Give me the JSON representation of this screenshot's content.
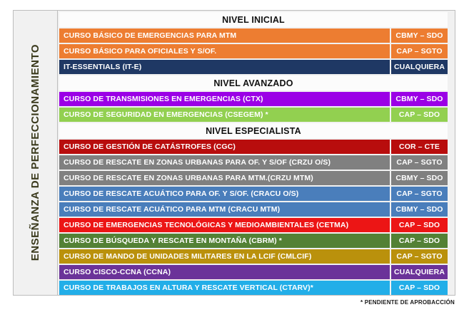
{
  "sidebar": {
    "label": "ENSEÑANZA DE PERFECCIONAMIENTO"
  },
  "footnote": "* PENDIENTE DE APROBACCIÓN",
  "colors": {
    "orange": "#ED7D31",
    "navy": "#1F3864",
    "violet": "#9B00E6",
    "light_green": "#92D050",
    "dark_red": "#B80D0D",
    "gray": "#808080",
    "steel_blue": "#4A7EBB",
    "bright_red": "#EC1515",
    "dark_green": "#538135",
    "gold": "#BA910C",
    "purple": "#6B3399",
    "sky_blue": "#22AEE8",
    "table_bg": "#F1F1F1",
    "header_bg": "#FCFCFC",
    "border": "#BDBDBD"
  },
  "rows": [
    {
      "type": "header",
      "label": "NIVEL INICIAL"
    },
    {
      "type": "course",
      "name": "CURSO BÁSICO DE EMERGENCIAS PARA MTM",
      "grade": "CBMY – SDO",
      "color": "#ED7D31"
    },
    {
      "type": "course",
      "name": "CURSO BÁSICO PARA OFICIALES Y S/OF.",
      "grade": "CAP – SGTO",
      "color": "#ED7D31"
    },
    {
      "type": "course",
      "name": "IT-ESSENTIALS (IT-E)",
      "grade": "CUALQUIERA",
      "color": "#1F3864"
    },
    {
      "type": "header",
      "label": "NIVEL AVANZADO"
    },
    {
      "type": "course",
      "name": "CURSO DE TRANSMISIONES EN EMERGENCIAS (CTX)",
      "grade": "CBMY – SDO",
      "color": "#9B00E6"
    },
    {
      "type": "course",
      "name": "CURSO DE SEGURIDAD EN EMERGENCIAS (CSEGEM) *",
      "grade": "CAP – SDO",
      "color": "#92D050"
    },
    {
      "type": "header",
      "label": "NIVEL ESPECIALISTA"
    },
    {
      "type": "course",
      "name": "CURSO DE GESTIÓN DE CATÁSTROFES (CGC)",
      "grade": "COR – CTE",
      "color": "#B80D0D"
    },
    {
      "type": "course",
      "name": "CURSO DE RESCATE EN ZONAS URBANAS PARA OF. Y S/OF (CRZU O/S)",
      "grade": "CAP – SGTO",
      "color": "#808080"
    },
    {
      "type": "course",
      "name": "CURSO DE RESCATE EN ZONAS URBANAS PARA MTM.(CRZU MTM)",
      "grade": "CBMY – SDO",
      "color": "#808080"
    },
    {
      "type": "course",
      "name": "CURSO DE RESCATE ACUÁTICO PARA OF. Y S/OF. (CRACU O/S)",
      "grade": "CAP – SGTO",
      "color": "#4A7EBB"
    },
    {
      "type": "course",
      "name": "CURSO DE RESCATE ACUÁTICO PARA MTM (CRACU MTM)",
      "grade": "CBMY – SDO",
      "color": "#4A7EBB"
    },
    {
      "type": "course",
      "name": "CURSO DE EMERGENCIAS TECNOLÓGICAS Y MEDIOAMBIENTALES (CETMA)",
      "grade": "CAP – SDO",
      "color": "#EC1515"
    },
    {
      "type": "course",
      "name": "CURSO DE BÚSQUEDA Y RESCATE EN MONTAÑA (CBRM) *",
      "grade": "CAP – SDO",
      "color": "#538135"
    },
    {
      "type": "course",
      "name": "CURSO DE MANDO DE UNIDADES MILITARES EN LA LCIF (CMLCIF)",
      "grade": "CAP – SGTO",
      "color": "#BA910C"
    },
    {
      "type": "course",
      "name": "CURSO CISCO-CCNA (CCNA)",
      "grade": "CUALQUIERA",
      "color": "#6B3399"
    },
    {
      "type": "course",
      "name": "CURSO DE TRABAJOS EN ALTURA Y RESCATE VERTICAL  (CTARV)*",
      "grade": "CAP – SDO",
      "color": "#22AEE8"
    }
  ]
}
